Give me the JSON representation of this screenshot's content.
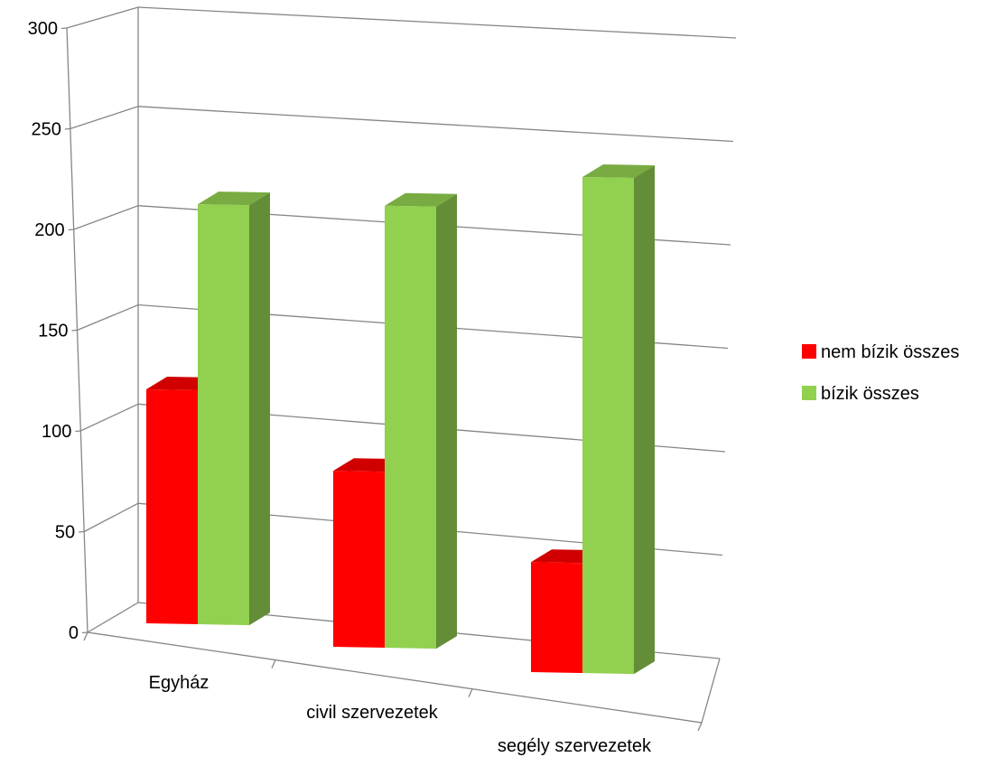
{
  "chart_data": {
    "type": "bar",
    "categories": [
      "Egyház",
      "civil szervezetek",
      "segély szervezetek"
    ],
    "series": [
      {
        "name": "nem bízik összes",
        "values": [
          117,
          88,
          55
        ],
        "color": "#ff0000"
      },
      {
        "name": "bízik összes",
        "values": [
          210,
          221,
          248
        ],
        "color": "#92d050"
      }
    ],
    "ylim": [
      0,
      300
    ],
    "yticks": [
      "0",
      "50",
      "100",
      "150",
      "200",
      "250",
      "300"
    ],
    "grid": true,
    "legend_position": "right",
    "style": "3d-clustered-column"
  }
}
